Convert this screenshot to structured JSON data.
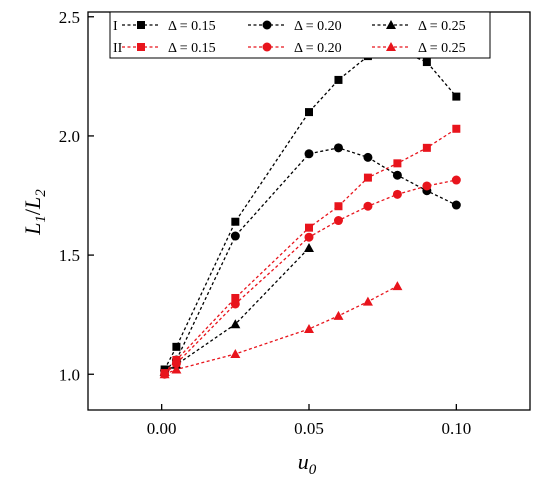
{
  "chart_data": {
    "type": "scatter",
    "xlabel": {
      "base": "u",
      "sub": "0"
    },
    "ylabel": {
      "a": "L",
      "a_sub": "1",
      "sep": "/",
      "b": "L",
      "b_sub": "2"
    },
    "xlim": [
      -0.025,
      0.125
    ],
    "ylim": [
      0.85,
      2.52
    ],
    "x_ticks": [
      0.0,
      0.05,
      0.1
    ],
    "x_tick_labels": [
      "0.00",
      "0.05",
      "0.10"
    ],
    "y_ticks": [
      1.0,
      1.5,
      2.0,
      2.5
    ],
    "y_tick_labels": [
      "1.0",
      "1.5",
      "2.0",
      "2.5"
    ],
    "grid": false,
    "legend": {
      "placement": "top",
      "groups": [
        {
          "label": "I",
          "color": "#000000"
        },
        {
          "label": "II",
          "color": "#e8141c"
        }
      ]
    },
    "series": [
      {
        "group": 0,
        "name": "Δ = 0.15",
        "marker": "square",
        "color": "#000000",
        "x": [
          0.001,
          0.005,
          0.025,
          0.05,
          0.06,
          0.07,
          0.08,
          0.09,
          0.1
        ],
        "y": [
          1.02,
          1.115,
          1.64,
          2.1,
          2.235,
          2.335,
          2.36,
          2.31,
          2.165
        ]
      },
      {
        "group": 0,
        "name": "Δ = 0.20",
        "marker": "circle",
        "color": "#000000",
        "x": [
          0.001,
          0.005,
          0.025,
          0.05,
          0.06,
          0.07,
          0.08,
          0.09,
          0.1
        ],
        "y": [
          1.015,
          1.06,
          1.58,
          1.925,
          1.95,
          1.91,
          1.835,
          1.77,
          1.71
        ]
      },
      {
        "group": 0,
        "name": "Δ = 0.25",
        "marker": "triangle",
        "color": "#000000",
        "x": [
          0.001,
          0.005,
          0.025,
          0.05
        ],
        "y": [
          1.01,
          1.04,
          1.21,
          1.53
        ]
      },
      {
        "group": 1,
        "name": "Δ = 0.15",
        "marker": "square",
        "color": "#e8141c",
        "x": [
          0.001,
          0.005,
          0.025,
          0.05,
          0.06,
          0.07,
          0.08,
          0.09,
          0.1
        ],
        "y": [
          1.005,
          1.06,
          1.32,
          1.615,
          1.705,
          1.825,
          1.885,
          1.95,
          2.03
        ]
      },
      {
        "group": 1,
        "name": "Δ = 0.20",
        "marker": "circle",
        "color": "#e8141c",
        "x": [
          0.001,
          0.005,
          0.025,
          0.05,
          0.06,
          0.07,
          0.08,
          0.09,
          0.1
        ],
        "y": [
          1.0,
          1.045,
          1.295,
          1.575,
          1.645,
          1.705,
          1.755,
          1.79,
          1.815
        ]
      },
      {
        "group": 1,
        "name": "Δ = 0.25",
        "marker": "triangle",
        "color": "#e8141c",
        "x": [
          0.001,
          0.005,
          0.025,
          0.05,
          0.06,
          0.07,
          0.08
        ],
        "y": [
          1.0,
          1.02,
          1.085,
          1.19,
          1.245,
          1.305,
          1.37
        ]
      }
    ]
  }
}
